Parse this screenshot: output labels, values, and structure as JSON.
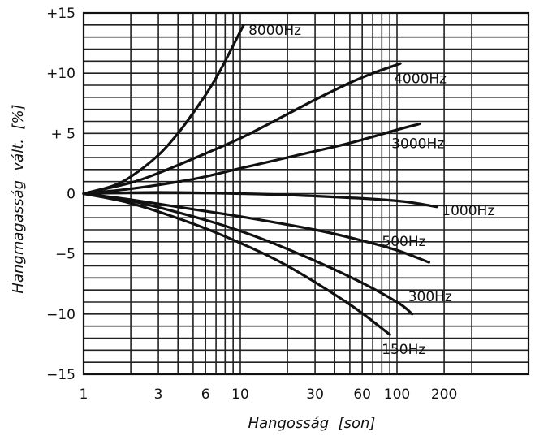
{
  "chart_data": {
    "type": "line",
    "title": "",
    "xlabel": "Hangosság  [son]",
    "ylabel": "Hangmagasság  vált.  [%]",
    "x_scale": "log",
    "xlim": [
      1,
      350
    ],
    "ylim": [
      -15,
      15
    ],
    "x_ticks": [
      {
        "value": 1,
        "label": "1"
      },
      {
        "value": 3,
        "label": "3"
      },
      {
        "value": 6,
        "label": "6"
      },
      {
        "value": 10,
        "label": "10"
      },
      {
        "value": 30,
        "label": "30"
      },
      {
        "value": 60,
        "label": "60"
      },
      {
        "value": 100,
        "label": "100"
      },
      {
        "value": 200,
        "label": "200"
      }
    ],
    "y_ticks": [
      {
        "value": 15,
        "label": "+15"
      },
      {
        "value": 10,
        "label": "+10"
      },
      {
        "value": 5,
        "label": "+ 5"
      },
      {
        "value": 0,
        "label": "0"
      },
      {
        "value": -5,
        "label": "−5"
      },
      {
        "value": -10,
        "label": "−10"
      },
      {
        "value": -15,
        "label": "−15"
      }
    ],
    "grid": true,
    "series": [
      {
        "name": "8000Hz",
        "x": [
          1,
          1.5,
          2,
          3,
          4,
          5,
          6,
          7,
          8,
          9,
          10.5
        ],
        "y": [
          0,
          0.6,
          1.4,
          3.2,
          5.0,
          6.7,
          8.2,
          9.6,
          11.0,
          12.3,
          14
        ]
      },
      {
        "name": "4000Hz",
        "x": [
          1,
          2,
          3,
          5,
          10,
          20,
          30,
          50,
          70,
          105
        ],
        "y": [
          0,
          0.9,
          1.7,
          2.9,
          4.6,
          6.6,
          7.8,
          9.2,
          10.0,
          10.8
        ]
      },
      {
        "name": "3000Hz",
        "x": [
          1,
          2,
          5,
          10,
          20,
          50,
          100,
          140
        ],
        "y": [
          0,
          0.4,
          1.2,
          2.1,
          3.0,
          4.2,
          5.3,
          5.8
        ]
      },
      {
        "name": "1000Hz",
        "x": [
          1,
          3,
          10,
          30,
          100,
          180
        ],
        "y": [
          0,
          0.1,
          0,
          -0.2,
          -0.6,
          -1.1
        ]
      },
      {
        "name": "500Hz",
        "x": [
          1,
          2,
          5,
          10,
          30,
          60,
          100,
          160
        ],
        "y": [
          0,
          -0.5,
          -1.3,
          -1.9,
          -3.0,
          -3.9,
          -4.7,
          -5.7
        ]
      },
      {
        "name": "300Hz",
        "x": [
          1,
          2,
          5,
          10,
          20,
          50,
          100,
          125
        ],
        "y": [
          0,
          -0.6,
          -1.9,
          -3.1,
          -4.6,
          -6.9,
          -9.0,
          -10.0
        ]
      },
      {
        "name": "150Hz",
        "x": [
          1,
          2,
          5,
          10,
          20,
          50,
          90
        ],
        "y": [
          0,
          -0.8,
          -2.5,
          -4.1,
          -6.0,
          -9.2,
          -11.7
        ]
      }
    ]
  }
}
